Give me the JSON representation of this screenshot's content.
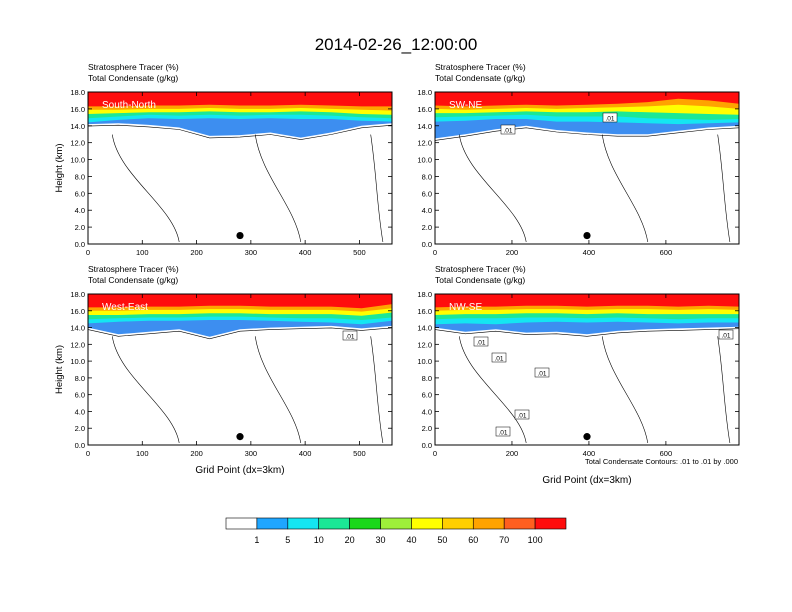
{
  "figure_title": "2014-02-26_12:00:00",
  "colors": {
    "palette": [
      "#ffffff",
      "#3d8ef0",
      "#1fa6ff",
      "#14e6f2",
      "#1be896",
      "#1bd81b",
      "#9ef03a",
      "#ffff00",
      "#ffcf00",
      "#ffa300",
      "#ff5f1f",
      "#ff0d0d"
    ],
    "contour_line": "#000000"
  },
  "colorbar": {
    "tick_labels": [
      "1",
      "5",
      "10",
      "20",
      "30",
      "40",
      "50",
      "60",
      "70",
      "100"
    ]
  },
  "contour_info": "Total Condensate Contours: .01 to .01 by .000",
  "chart_data": [
    {
      "type": "heatmap",
      "panel_label": "South-North",
      "title_line1": "Stratosphere Tracer   (%)",
      "title_line2": "Total Condensate   (g/kg)",
      "ylabel": "Height (km)",
      "xlabel": "",
      "xlim": [
        0,
        560
      ],
      "ylim": [
        0,
        18
      ],
      "xticks": [
        0,
        100,
        200,
        300,
        400,
        500
      ],
      "yticks": [
        "0.0",
        "2.0",
        "4.0",
        "6.0",
        "8.0",
        "10.0",
        "12.0",
        "14.0",
        "16.0",
        "18.0"
      ],
      "tracer_layers_km": {
        "top_red": [
          16.3,
          16.3,
          16.4,
          16.4,
          16.5,
          16.4,
          16.4,
          16.5,
          16.4,
          16.3,
          16.3
        ],
        "orange": [
          15.9,
          15.9,
          16.0,
          16.0,
          16.1,
          16.0,
          16.0,
          16.1,
          16.0,
          15.9,
          15.8
        ],
        "yellow": [
          15.4,
          15.5,
          15.6,
          15.6,
          15.7,
          15.6,
          15.6,
          15.7,
          15.6,
          15.4,
          15.3
        ],
        "green": [
          14.9,
          15.1,
          15.3,
          15.2,
          15.3,
          15.2,
          15.3,
          15.3,
          15.2,
          15.0,
          14.9
        ],
        "cyan": [
          14.4,
          14.7,
          14.9,
          14.8,
          14.9,
          14.8,
          14.9,
          14.8,
          14.8,
          14.6,
          14.5
        ],
        "blue_low": [
          14.2,
          14.3,
          14.1,
          13.8,
          12.8,
          12.9,
          13.2,
          12.6,
          13.2,
          14.0,
          14.3
        ]
      },
      "markers": [
        {
          "x": 280,
          "y": 1.0
        }
      ],
      "contour_labels": []
    },
    {
      "type": "heatmap",
      "panel_label": "SW-NE",
      "title_line1": "Stratosphere Tracer   (%)",
      "title_line2": "Total Condensate   (g/kg)",
      "ylabel": "",
      "xlabel": "",
      "xlim": [
        0,
        790
      ],
      "ylim": [
        0,
        18
      ],
      "xticks": [
        0,
        200,
        400,
        600
      ],
      "yticks": [
        "0.0",
        "2.0",
        "4.0",
        "6.0",
        "8.0",
        "10.0",
        "12.0",
        "14.0",
        "16.0",
        "18.0"
      ],
      "tracer_layers_km": {
        "top_red": [
          16.4,
          16.3,
          16.4,
          16.5,
          16.4,
          16.5,
          16.6,
          16.8,
          17.2,
          17.0,
          16.6
        ],
        "orange": [
          16.0,
          15.9,
          16.0,
          16.1,
          16.0,
          16.1,
          16.2,
          16.3,
          16.5,
          16.3,
          16.0
        ],
        "yellow": [
          15.5,
          15.5,
          15.6,
          15.7,
          15.6,
          15.6,
          15.7,
          15.6,
          15.5,
          15.4,
          15.3
        ],
        "green": [
          15.0,
          15.1,
          15.2,
          15.3,
          15.1,
          15.1,
          15.1,
          14.9,
          14.8,
          14.7,
          14.8
        ],
        "cyan": [
          14.5,
          14.6,
          14.8,
          14.8,
          14.5,
          14.5,
          14.4,
          14.3,
          14.2,
          14.3,
          14.4
        ],
        "blue_low": [
          12.5,
          13.0,
          13.6,
          14.0,
          13.5,
          13.2,
          13.0,
          13.0,
          13.4,
          13.8,
          14.0
        ]
      },
      "markers": [
        {
          "x": 395,
          "y": 1.0
        }
      ],
      "contour_labels": [
        ".01",
        ".01"
      ]
    },
    {
      "type": "heatmap",
      "panel_label": "West-East",
      "title_line1": "Stratosphere Tracer   (%)",
      "title_line2": "Total Condensate   (g/kg)",
      "ylabel": "Height (km)",
      "xlabel": "Grid Point (dx=3km)",
      "xlim": [
        0,
        560
      ],
      "ylim": [
        0,
        18
      ],
      "xticks": [
        0,
        100,
        200,
        300,
        400,
        500
      ],
      "yticks": [
        "0.0",
        "2.0",
        "4.0",
        "6.0",
        "8.0",
        "10.0",
        "12.0",
        "14.0",
        "16.0",
        "18.0"
      ],
      "tracer_layers_km": {
        "top_red": [
          16.4,
          16.4,
          16.5,
          16.5,
          16.6,
          16.6,
          16.5,
          16.5,
          16.5,
          16.3,
          16.8
        ],
        "orange": [
          16.0,
          16.0,
          16.1,
          16.1,
          16.2,
          16.2,
          16.1,
          16.1,
          16.1,
          15.9,
          16.3
        ],
        "yellow": [
          15.5,
          15.5,
          15.6,
          15.6,
          15.7,
          15.7,
          15.6,
          15.6,
          15.6,
          15.4,
          15.8
        ],
        "green": [
          15.0,
          15.1,
          15.2,
          15.2,
          15.3,
          15.3,
          15.2,
          15.1,
          15.1,
          14.9,
          15.2
        ],
        "cyan": [
          14.5,
          14.7,
          14.8,
          14.8,
          14.9,
          14.9,
          14.8,
          14.7,
          14.6,
          14.4,
          14.8
        ],
        "blue_low": [
          14.0,
          13.2,
          13.5,
          13.8,
          12.9,
          13.8,
          14.0,
          14.1,
          14.2,
          13.9,
          14.2
        ]
      },
      "markers": [
        {
          "x": 280,
          "y": 1.0
        }
      ],
      "contour_labels": [
        ".01"
      ]
    },
    {
      "type": "heatmap",
      "panel_label": "NW-SE",
      "title_line1": "Stratosphere Tracer   (%)",
      "title_line2": "Total Condensate   (g/kg)",
      "ylabel": "",
      "xlabel": "Grid Point (dx=3km)",
      "xlim": [
        0,
        790
      ],
      "ylim": [
        0,
        18
      ],
      "xticks": [
        0,
        200,
        400,
        600
      ],
      "yticks": [
        "0.0",
        "2.0",
        "4.0",
        "6.0",
        "8.0",
        "10.0",
        "12.0",
        "14.0",
        "16.0",
        "18.0"
      ],
      "tracer_layers_km": {
        "top_red": [
          16.4,
          16.5,
          16.5,
          16.6,
          16.6,
          16.5,
          16.6,
          16.6,
          16.5,
          16.6,
          16.5
        ],
        "orange": [
          16.0,
          16.1,
          16.1,
          16.2,
          16.2,
          16.1,
          16.2,
          16.2,
          16.1,
          16.2,
          16.1
        ],
        "yellow": [
          15.5,
          15.6,
          15.6,
          15.7,
          15.7,
          15.6,
          15.7,
          15.6,
          15.6,
          15.6,
          15.6
        ],
        "green": [
          15.0,
          15.1,
          15.1,
          15.2,
          15.2,
          15.1,
          15.2,
          15.1,
          15.0,
          15.1,
          15.1
        ],
        "cyan": [
          14.4,
          14.5,
          14.4,
          14.6,
          14.7,
          14.6,
          14.7,
          14.6,
          14.5,
          14.6,
          14.6
        ],
        "blue_low": [
          14.0,
          13.5,
          13.8,
          13.4,
          13.5,
          13.2,
          13.6,
          13.8,
          13.9,
          14.0,
          14.1
        ]
      },
      "markers": [
        {
          "x": 395,
          "y": 1.0
        }
      ],
      "contour_labels": [
        ".01",
        ".01",
        ".01",
        ".01",
        ".01",
        ".01"
      ]
    }
  ]
}
